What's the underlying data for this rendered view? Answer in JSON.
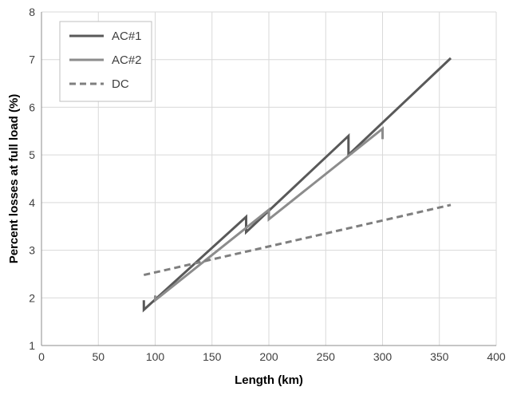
{
  "chart_data": {
    "type": "line",
    "xlabel": "Length  (km)",
    "ylabel": "Percent losses at full load  (%)",
    "xlim": [
      0,
      400
    ],
    "ylim": [
      1,
      8
    ],
    "xticks": [
      0,
      50,
      100,
      150,
      200,
      250,
      300,
      350,
      400
    ],
    "yticks": [
      1,
      2,
      3,
      4,
      5,
      6,
      7,
      8
    ],
    "grid": true,
    "legend_position": "top-left",
    "series": [
      {
        "name": "AC#1",
        "style": "solid",
        "color": "#595959",
        "points": [
          [
            90,
            1.95
          ],
          [
            90,
            1.75
          ],
          [
            180,
            3.7
          ],
          [
            180,
            3.38
          ],
          [
            270,
            5.4
          ],
          [
            270,
            5.0
          ],
          [
            360,
            7.03
          ]
        ]
      },
      {
        "name": "AC#2",
        "style": "solid",
        "color": "#8c8c8c",
        "points": [
          [
            100,
            2.05
          ],
          [
            100,
            1.95
          ],
          [
            200,
            3.85
          ],
          [
            200,
            3.65
          ],
          [
            300,
            5.55
          ],
          [
            300,
            5.33
          ]
        ]
      },
      {
        "name": "DC",
        "style": "dashed",
        "color": "#7f7f7f",
        "points": [
          [
            90,
            2.48
          ],
          [
            360,
            3.95
          ]
        ]
      }
    ]
  }
}
